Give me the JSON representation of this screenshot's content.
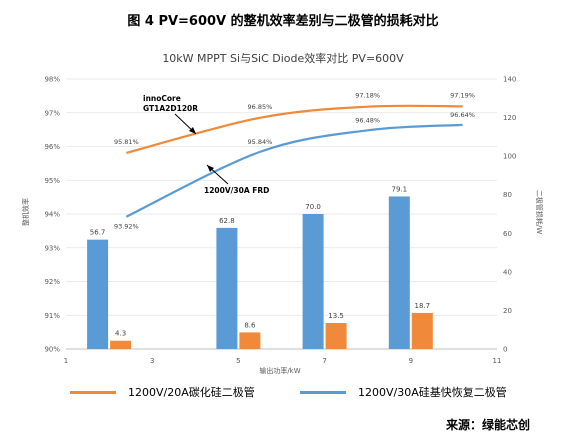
{
  "figure_title": "图 4 PV=600V 的整机效率差别与二极管的损耗对比",
  "source_text": "来源：绿能芯创",
  "colors": {
    "orange": "#F08A3A",
    "blue": "#5B9BD5",
    "axis": "#bfbfbf",
    "text": "#595959"
  },
  "chart_data": {
    "type": "bar+line",
    "title": "10kW MPPT Si与SiC Diode效率对比 PV=600V",
    "xlabel": "输出功率/kW",
    "ylabel_left": "整机效率",
    "ylabel_right": "二极管损耗/W",
    "xlim": [
      1,
      11
    ],
    "x_ticks": [
      1,
      3,
      5,
      7,
      9,
      11
    ],
    "ylim_left": [
      90,
      98
    ],
    "y_ticks_left": [
      "90%",
      "91%",
      "92%",
      "93%",
      "94%",
      "95%",
      "96%",
      "97%",
      "98%"
    ],
    "ylim_right": [
      0,
      140
    ],
    "y_ticks_right": [
      0,
      20,
      40,
      60,
      80,
      100,
      120,
      140
    ],
    "bar_x": [
      2,
      5,
      7,
      9
    ],
    "bars": [
      {
        "name": "1200V/30A硅基快恢复二极管",
        "color": "#5B9BD5",
        "values": [
          56.7,
          62.8,
          70.0,
          79.1
        ],
        "labels": [
          "56.7",
          "62.8",
          "70.0",
          "79.1"
        ]
      },
      {
        "name": "1200V/20A碳化硅二极管",
        "color": "#F08A3A",
        "values": [
          4.3,
          8.6,
          13.5,
          18.7
        ],
        "labels": [
          "4.3",
          "8.6",
          "13.5",
          "18.7"
        ]
      }
    ],
    "lines": [
      {
        "name": "1200V/20A碳化硅二极管",
        "color": "#F08A3A",
        "x": [
          2.4,
          5.5,
          8,
          10.2
        ],
        "y": [
          95.81,
          96.85,
          97.18,
          97.19
        ],
        "labels": [
          "95.81%",
          "96.85%",
          "97.18%",
          "97.19%"
        ]
      },
      {
        "name": "1200V/30A硅基快恢复二极管",
        "color": "#5B9BD5",
        "x": [
          2.4,
          5.5,
          8,
          10.2
        ],
        "y": [
          93.92,
          95.84,
          96.48,
          96.64
        ],
        "labels": [
          "93.92%",
          "95.84%",
          "96.48%",
          "96.64%"
        ]
      }
    ],
    "annotations": [
      {
        "text": "innoCore",
        "text2": "GT1A2D120R"
      },
      {
        "text": "1200V/30A FRD"
      }
    ],
    "grid": true
  },
  "legend": [
    {
      "label": "1200V/20A碳化硅二极管",
      "color": "#F08A3A"
    },
    {
      "label": "1200V/30A硅基快恢复二极管",
      "color": "#5B9BD5"
    }
  ]
}
